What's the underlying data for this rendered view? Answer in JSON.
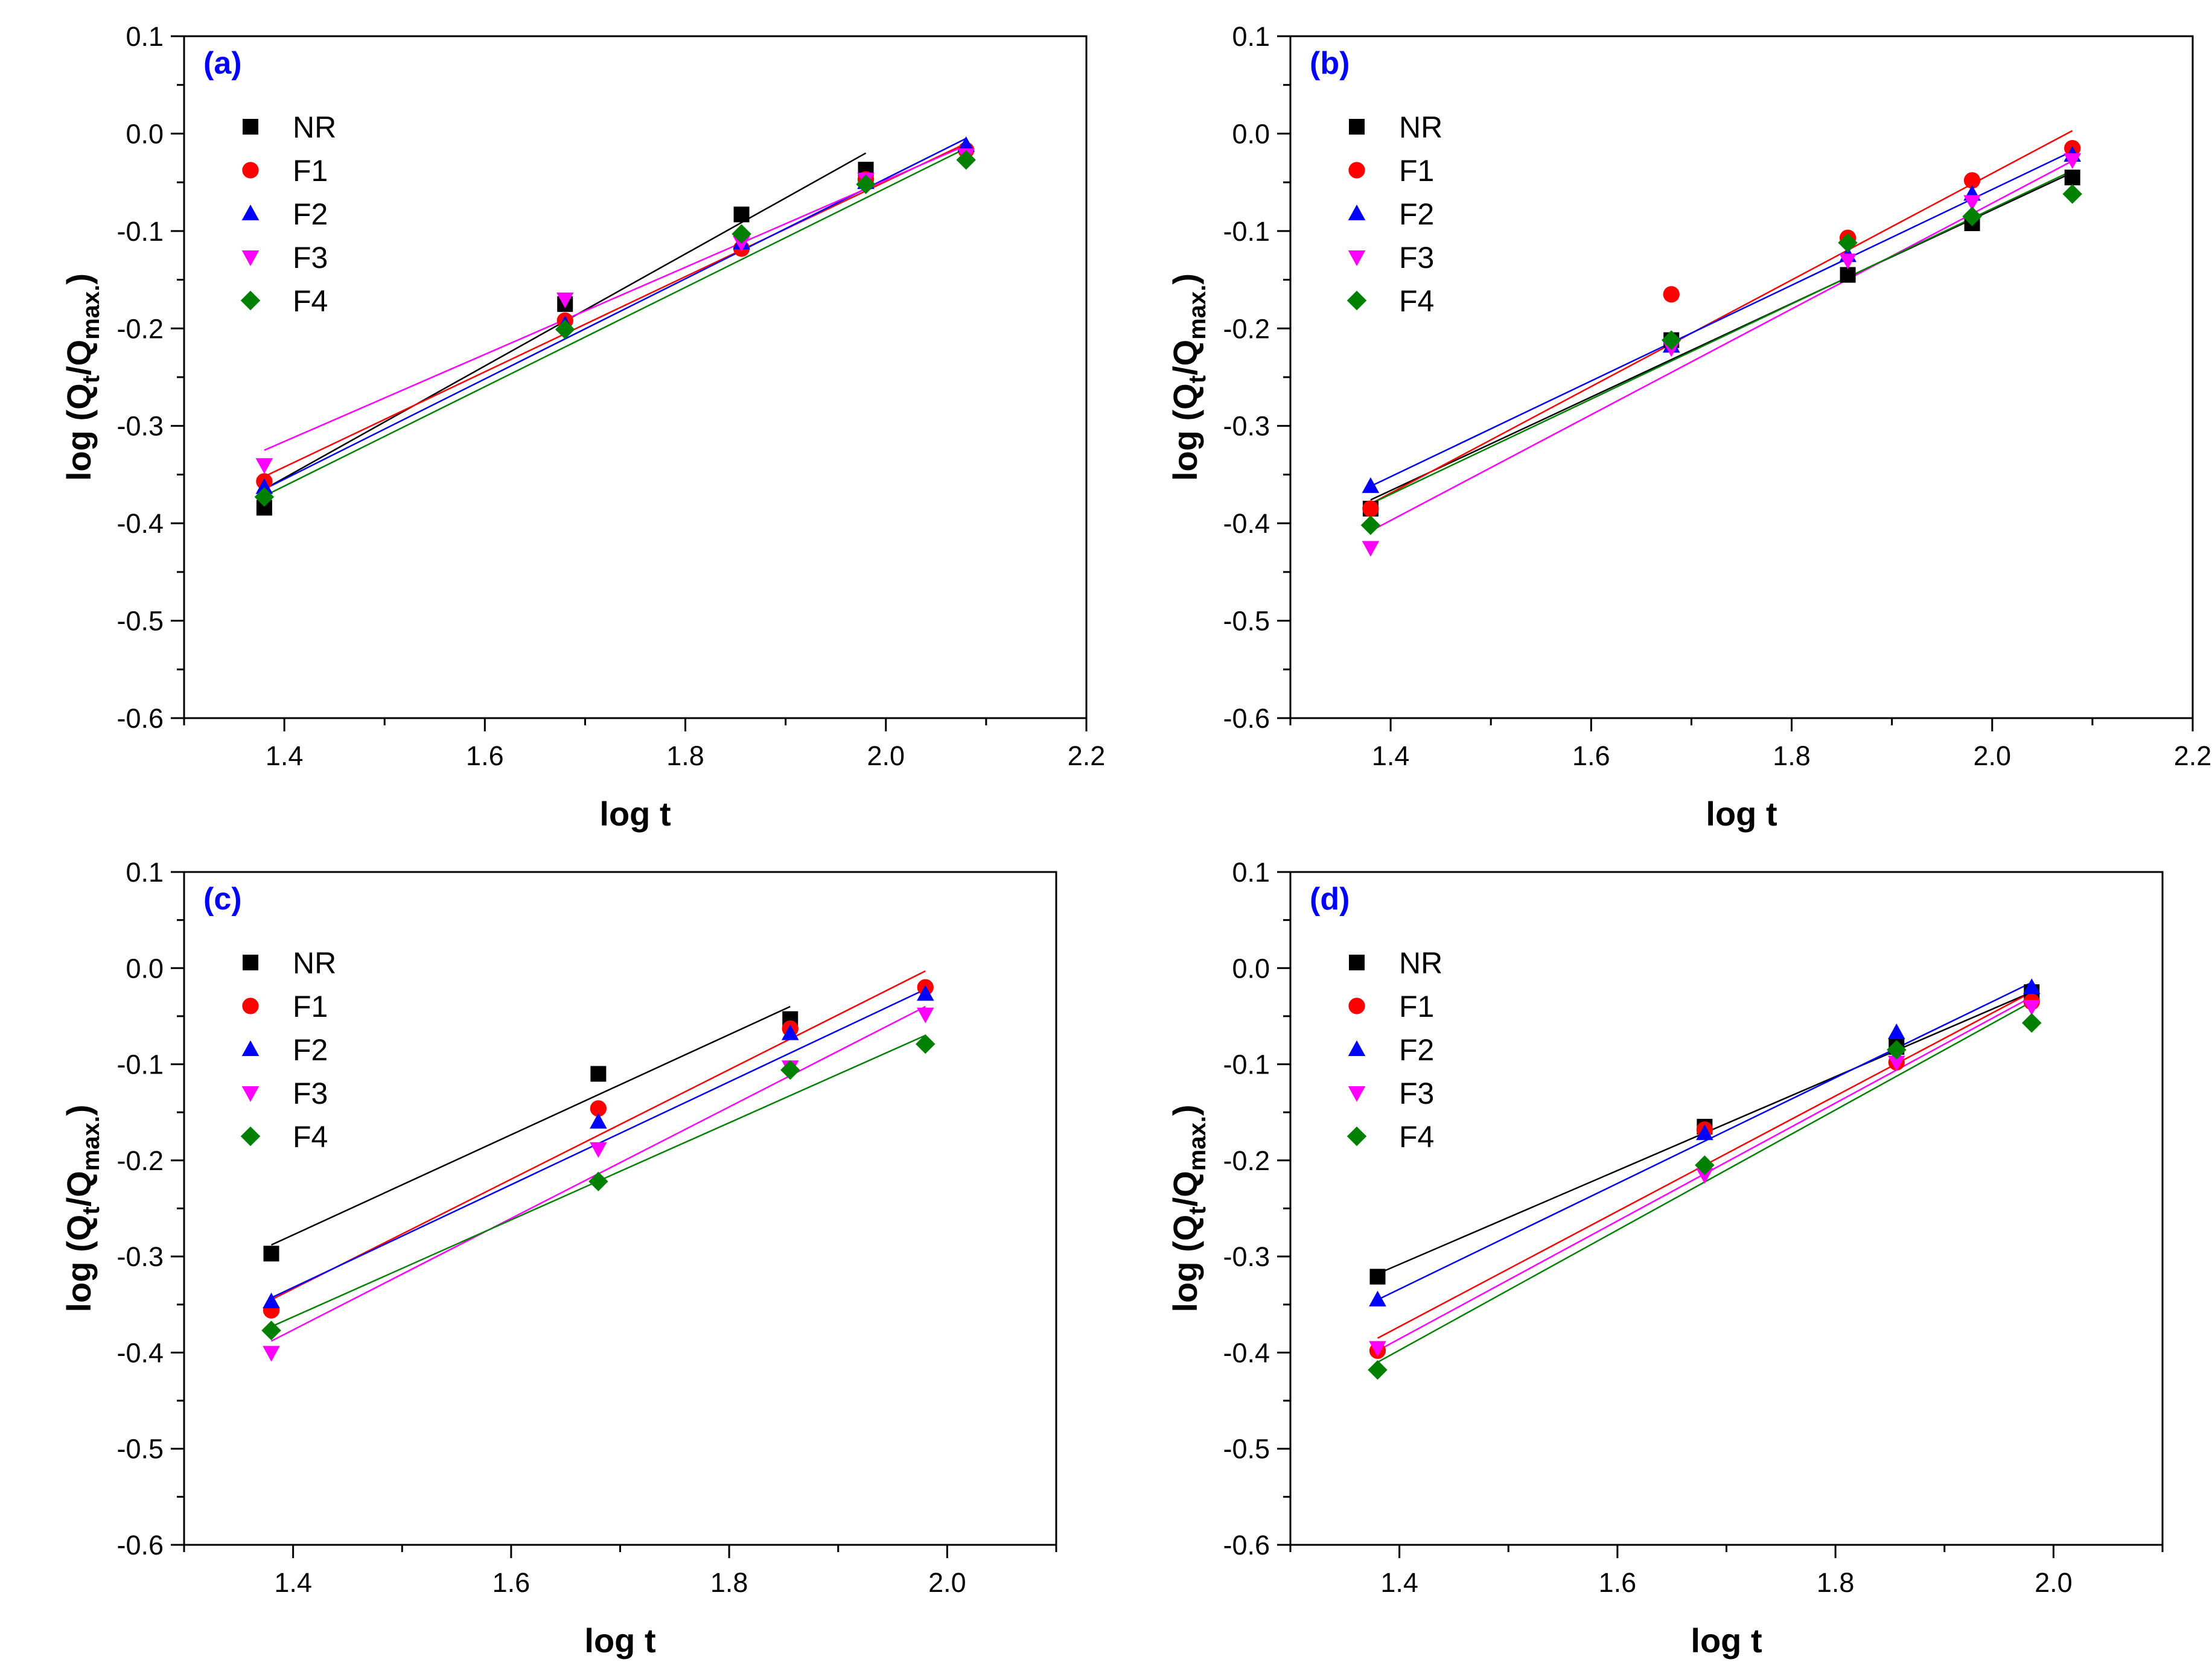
{
  "chart_data": [
    {
      "panel_label": "(a)",
      "type": "scatter",
      "xlabel": "log t",
      "ylabel": "log (Qt/Qmax.)",
      "xlim": [
        1.3,
        2.2
      ],
      "ylim": [
        -0.6,
        0.1
      ],
      "xticks": [
        1.4,
        1.6,
        1.8,
        2.0,
        2.2
      ],
      "yticks": [
        -0.6,
        -0.5,
        -0.4,
        -0.3,
        -0.2,
        -0.1,
        0.0,
        0.1
      ],
      "legend_position": "top-left",
      "series": [
        {
          "name": "NR",
          "color": "#000000",
          "marker": "square",
          "points": [
            [
              1.38,
              -0.384
            ],
            [
              1.68,
              -0.175
            ],
            [
              1.856,
              -0.083
            ],
            [
              1.98,
              -0.037
            ]
          ],
          "fit": [
            [
              1.38,
              -0.365
            ],
            [
              1.98,
              -0.02
            ]
          ]
        },
        {
          "name": "F1",
          "color": "#ff0000",
          "marker": "circle",
          "points": [
            [
              1.38,
              -0.357
            ],
            [
              1.68,
              -0.192
            ],
            [
              1.856,
              -0.118
            ],
            [
              1.98,
              -0.047
            ],
            [
              2.08,
              -0.017
            ]
          ],
          "fit": [
            [
              1.38,
              -0.352
            ],
            [
              2.08,
              -0.01
            ]
          ]
        },
        {
          "name": "F2",
          "color": "#0000ff",
          "marker": "triangle-up",
          "points": [
            [
              1.38,
              -0.363
            ],
            [
              1.68,
              -0.196
            ],
            [
              1.856,
              -0.112
            ],
            [
              1.98,
              -0.05
            ],
            [
              2.08,
              -0.012
            ]
          ],
          "fit": [
            [
              1.38,
              -0.365
            ],
            [
              2.08,
              -0.005
            ]
          ]
        },
        {
          "name": "F3",
          "color": "#ff00ff",
          "marker": "triangle-down",
          "points": [
            [
              1.38,
              -0.34
            ],
            [
              1.68,
              -0.17
            ],
            [
              1.856,
              -0.112
            ],
            [
              1.98,
              -0.047
            ],
            [
              2.08,
              -0.022
            ]
          ],
          "fit": [
            [
              1.38,
              -0.325
            ],
            [
              2.08,
              -0.012
            ]
          ]
        },
        {
          "name": "F4",
          "color": "#008000",
          "marker": "diamond",
          "points": [
            [
              1.38,
              -0.373
            ],
            [
              1.68,
              -0.201
            ],
            [
              1.856,
              -0.103
            ],
            [
              1.98,
              -0.052
            ],
            [
              2.08,
              -0.027
            ]
          ],
          "fit": [
            [
              1.38,
              -0.372
            ],
            [
              2.08,
              -0.015
            ]
          ]
        }
      ]
    },
    {
      "panel_label": "(b)",
      "type": "scatter",
      "xlabel": "log t",
      "ylabel": "log (Qt/Qmax.)",
      "xlim": [
        1.3,
        2.2
      ],
      "ylim": [
        -0.6,
        0.1
      ],
      "xticks": [
        1.4,
        1.6,
        1.8,
        2.0,
        2.2
      ],
      "yticks": [
        -0.6,
        -0.5,
        -0.4,
        -0.3,
        -0.2,
        -0.1,
        0.0,
        0.1
      ],
      "legend_position": "top-left",
      "series": [
        {
          "name": "NR",
          "color": "#000000",
          "marker": "square",
          "points": [
            [
              1.38,
              -0.385
            ],
            [
              1.68,
              -0.212
            ],
            [
              1.856,
              -0.145
            ],
            [
              1.98,
              -0.092
            ],
            [
              2.08,
              -0.045
            ]
          ],
          "fit": [
            [
              1.38,
              -0.376
            ],
            [
              2.08,
              -0.04
            ]
          ]
        },
        {
          "name": "F1",
          "color": "#ff0000",
          "marker": "circle",
          "points": [
            [
              1.38,
              -0.385
            ],
            [
              1.68,
              -0.165
            ],
            [
              1.856,
              -0.107
            ],
            [
              1.98,
              -0.048
            ],
            [
              2.08,
              -0.015
            ]
          ],
          "fit": [
            [
              1.38,
              -0.38
            ],
            [
              2.08,
              0.003
            ]
          ]
        },
        {
          "name": "F2",
          "color": "#0000ff",
          "marker": "triangle-up",
          "points": [
            [
              1.38,
              -0.362
            ],
            [
              1.68,
              -0.218
            ],
            [
              1.856,
              -0.125
            ],
            [
              1.98,
              -0.062
            ],
            [
              2.08,
              -0.022
            ]
          ],
          "fit": [
            [
              1.38,
              -0.362
            ],
            [
              2.08,
              -0.018
            ]
          ]
        },
        {
          "name": "F3",
          "color": "#ff00ff",
          "marker": "triangle-down",
          "points": [
            [
              1.38,
              -0.425
            ],
            [
              1.68,
              -0.22
            ],
            [
              1.856,
              -0.13
            ],
            [
              1.98,
              -0.07
            ],
            [
              2.08,
              -0.027
            ]
          ],
          "fit": [
            [
              1.38,
              -0.408
            ],
            [
              2.08,
              -0.028
            ]
          ]
        },
        {
          "name": "F4",
          "color": "#008000",
          "marker": "diamond",
          "points": [
            [
              1.38,
              -0.402
            ],
            [
              1.68,
              -0.212
            ],
            [
              1.856,
              -0.112
            ],
            [
              1.98,
              -0.085
            ],
            [
              2.08,
              -0.062
            ]
          ],
          "fit": [
            [
              1.38,
              -0.38
            ],
            [
              2.08,
              -0.038
            ]
          ]
        }
      ]
    },
    {
      "panel_label": "(c)",
      "type": "scatter",
      "xlabel": "log t",
      "ylabel": "log (Qt/Qmax.)",
      "xlim": [
        1.3,
        2.1
      ],
      "ylim": [
        -0.6,
        0.1
      ],
      "xticks": [
        1.4,
        1.6,
        1.8,
        2.0
      ],
      "yticks": [
        -0.6,
        -0.5,
        -0.4,
        -0.3,
        -0.2,
        -0.1,
        0.0,
        0.1
      ],
      "legend_position": "top-left",
      "series": [
        {
          "name": "NR",
          "color": "#000000",
          "marker": "square",
          "points": [
            [
              1.38,
              -0.297
            ],
            [
              1.68,
              -0.11
            ],
            [
              1.856,
              -0.053
            ]
          ],
          "fit": [
            [
              1.38,
              -0.288
            ],
            [
              1.856,
              -0.04
            ]
          ]
        },
        {
          "name": "F1",
          "color": "#ff0000",
          "marker": "circle",
          "points": [
            [
              1.38,
              -0.356
            ],
            [
              1.68,
              -0.146
            ],
            [
              1.856,
              -0.063
            ],
            [
              1.98,
              -0.02
            ]
          ],
          "fit": [
            [
              1.38,
              -0.345
            ],
            [
              1.98,
              -0.003
            ]
          ]
        },
        {
          "name": "F2",
          "color": "#0000ff",
          "marker": "triangle-up",
          "points": [
            [
              1.38,
              -0.347
            ],
            [
              1.68,
              -0.16
            ],
            [
              1.856,
              -0.068
            ],
            [
              1.98,
              -0.027
            ]
          ],
          "fit": [
            [
              1.38,
              -0.343
            ],
            [
              1.98,
              -0.022
            ]
          ]
        },
        {
          "name": "F3",
          "color": "#ff00ff",
          "marker": "triangle-down",
          "points": [
            [
              1.38,
              -0.4
            ],
            [
              1.68,
              -0.188
            ],
            [
              1.856,
              -0.103
            ],
            [
              1.98,
              -0.048
            ]
          ],
          "fit": [
            [
              1.38,
              -0.388
            ],
            [
              1.98,
              -0.04
            ]
          ]
        },
        {
          "name": "F4",
          "color": "#008000",
          "marker": "diamond",
          "points": [
            [
              1.38,
              -0.377
            ],
            [
              1.68,
              -0.222
            ],
            [
              1.856,
              -0.106
            ],
            [
              1.98,
              -0.079
            ]
          ],
          "fit": [
            [
              1.38,
              -0.373
            ],
            [
              1.98,
              -0.07
            ]
          ]
        }
      ]
    },
    {
      "panel_label": "(d)",
      "type": "scatter",
      "xlabel": "log t",
      "ylabel": "log (Qt/Qmax.)",
      "xlim": [
        1.3,
        2.1
      ],
      "ylim": [
        -0.6,
        0.1
      ],
      "xticks": [
        1.4,
        1.6,
        1.8,
        2.0
      ],
      "yticks": [
        -0.6,
        -0.5,
        -0.4,
        -0.3,
        -0.2,
        -0.1,
        0.0,
        0.1
      ],
      "legend_position": "top-left",
      "series": [
        {
          "name": "NR",
          "color": "#000000",
          "marker": "square",
          "points": [
            [
              1.38,
              -0.321
            ],
            [
              1.68,
              -0.165
            ],
            [
              1.856,
              -0.082
            ],
            [
              1.98,
              -0.025
            ]
          ],
          "fit": [
            [
              1.38,
              -0.318
            ],
            [
              1.98,
              -0.025
            ]
          ]
        },
        {
          "name": "F1",
          "color": "#ff0000",
          "marker": "circle",
          "points": [
            [
              1.38,
              -0.398
            ],
            [
              1.68,
              -0.168
            ],
            [
              1.856,
              -0.098
            ],
            [
              1.98,
              -0.035
            ]
          ],
          "fit": [
            [
              1.38,
              -0.385
            ],
            [
              1.98,
              -0.025
            ]
          ]
        },
        {
          "name": "F2",
          "color": "#0000ff",
          "marker": "triangle-up",
          "points": [
            [
              1.38,
              -0.345
            ],
            [
              1.68,
              -0.172
            ],
            [
              1.856,
              -0.067
            ],
            [
              1.98,
              -0.02
            ]
          ],
          "fit": [
            [
              1.38,
              -0.345
            ],
            [
              1.98,
              -0.015
            ]
          ]
        },
        {
          "name": "F3",
          "color": "#ff00ff",
          "marker": "triangle-down",
          "points": [
            [
              1.38,
              -0.395
            ],
            [
              1.68,
              -0.215
            ],
            [
              1.856,
              -0.098
            ],
            [
              1.98,
              -0.04
            ]
          ],
          "fit": [
            [
              1.38,
              -0.398
            ],
            [
              1.98,
              -0.03
            ]
          ]
        },
        {
          "name": "F4",
          "color": "#008000",
          "marker": "diamond",
          "points": [
            [
              1.38,
              -0.418
            ],
            [
              1.68,
              -0.205
            ],
            [
              1.856,
              -0.085
            ],
            [
              1.98,
              -0.057
            ]
          ],
          "fit": [
            [
              1.38,
              -0.41
            ],
            [
              1.98,
              -0.035
            ]
          ]
        }
      ]
    }
  ]
}
